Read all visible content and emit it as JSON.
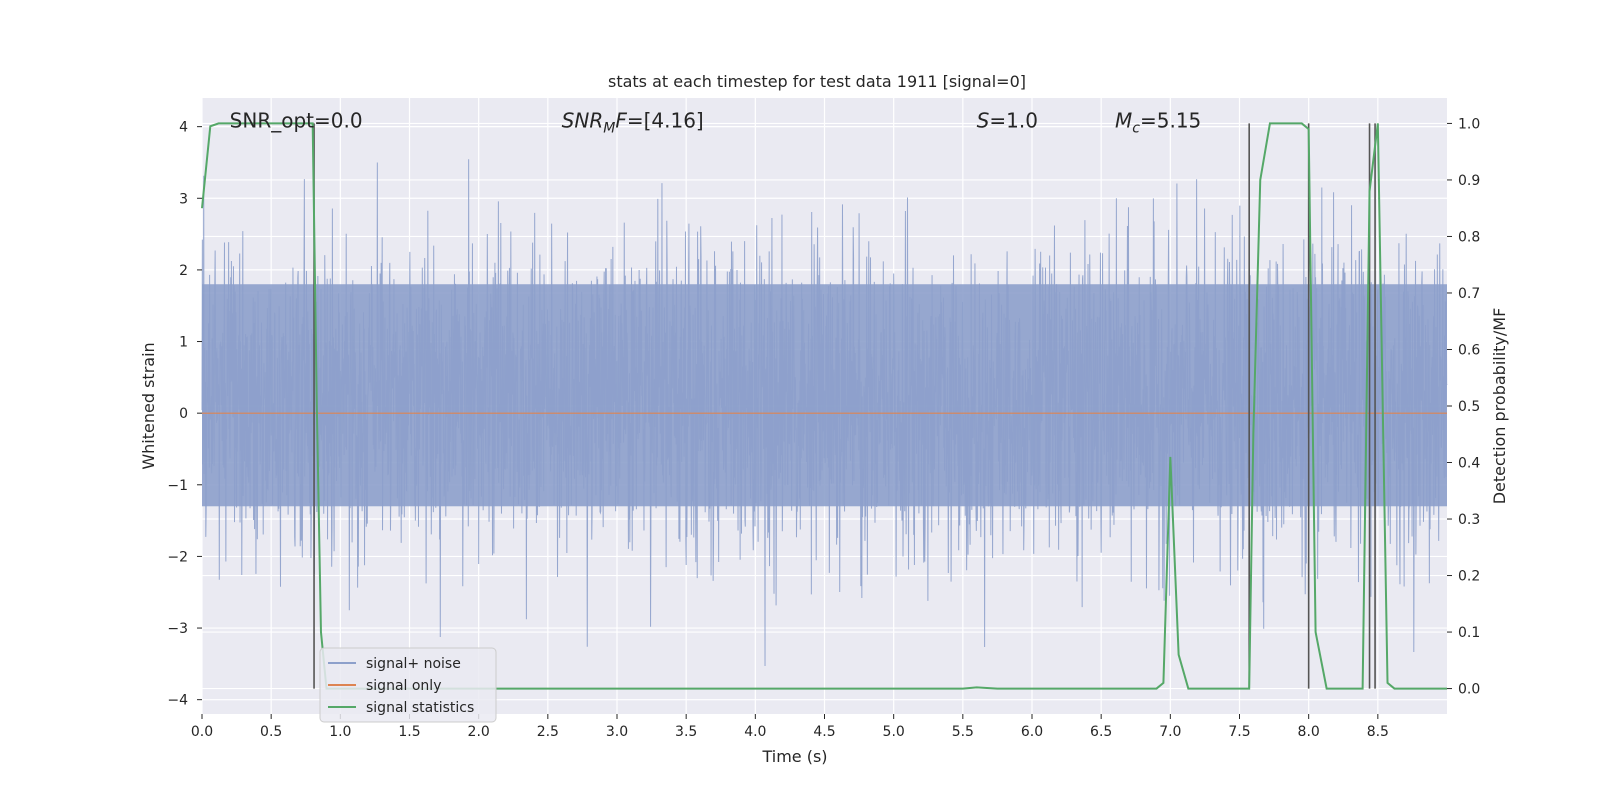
{
  "chart_data": {
    "type": "line",
    "title": "stats at each timestep for test data 1911 [signal=0]",
    "xlabel": "Time (s)",
    "ylabel_left": "Whitened strain",
    "ylabel_right": "Detection probability/MF",
    "xlim": [
      0.0,
      9.0
    ],
    "ylim_left": [
      -4.2,
      4.4
    ],
    "ylim_right": [
      -0.045,
      1.045
    ],
    "x_ticks": [
      0.0,
      0.5,
      1.0,
      1.5,
      2.0,
      2.5,
      3.0,
      3.5,
      4.0,
      4.5,
      5.0,
      5.5,
      6.0,
      6.5,
      7.0,
      7.5,
      8.0,
      8.5
    ],
    "x_tick_labels": [
      "0.0",
      "0.5",
      "1.0",
      "1.5",
      "2.0",
      "2.5",
      "3.0",
      "3.5",
      "4.0",
      "4.5",
      "5.0",
      "5.5",
      "6.0",
      "6.5",
      "7.0",
      "7.5",
      "8.0",
      "8.5"
    ],
    "y_ticks_left": [
      -4,
      -3,
      -2,
      -1,
      0,
      1,
      2,
      3,
      4
    ],
    "y_tick_labels_left": [
      "−4",
      "−3",
      "−2",
      "−1",
      "0",
      "1",
      "2",
      "3",
      "4"
    ],
    "y_ticks_right": [
      0.0,
      0.1,
      0.2,
      0.3,
      0.4,
      0.5,
      0.6,
      0.7,
      0.8,
      0.9,
      1.0
    ],
    "y_tick_labels_right": [
      "0.0",
      "0.1",
      "0.2",
      "0.3",
      "0.4",
      "0.5",
      "0.6",
      "0.7",
      "0.8",
      "0.9",
      "1.0"
    ],
    "grid": true,
    "background": "#eaeaf2",
    "annotations": [
      {
        "base": "SNR_opt=0.0",
        "sub": "",
        "rest": "",
        "italic": false,
        "x": 0.2
      },
      {
        "base": "SNR",
        "sub": "M",
        "rest": "F=[4.16]",
        "italic": true,
        "x": 2.6
      },
      {
        "base": "S",
        "sub": "",
        "rest": "=1.0",
        "italic": true,
        "x": 5.6
      },
      {
        "base": "M",
        "sub": "c",
        "rest": "=5.15",
        "italic": true,
        "x": 6.6
      }
    ],
    "series": [
      {
        "name": "signal+ noise",
        "color": "#8da0cb",
        "axis": "left",
        "style": "dense-noise",
        "approx_range": [
          -3.6,
          3.8
        ],
        "core_band": [
          -1.3,
          1.8
        ]
      },
      {
        "name": "signal only",
        "color": "#dd8452",
        "axis": "left",
        "x": [
          0.0,
          9.0
        ],
        "y": [
          0.0,
          0.0
        ]
      },
      {
        "name": "signal statistics",
        "color": "#55a868",
        "axis": "right",
        "x": [
          0.0,
          0.06,
          0.12,
          0.5,
          0.75,
          0.8,
          0.83,
          0.86,
          0.9,
          1.0,
          2.0,
          3.0,
          4.0,
          5.0,
          5.5,
          5.6,
          5.75,
          6.0,
          6.9,
          6.95,
          7.0,
          7.06,
          7.13,
          7.5,
          7.57,
          7.6,
          7.65,
          7.72,
          7.95,
          8.0,
          8.05,
          8.13,
          8.2,
          8.3,
          8.39,
          8.44,
          8.5,
          8.57,
          8.62,
          9.0
        ],
        "y": [
          0.85,
          0.995,
          1.0,
          1.0,
          1.0,
          1.0,
          0.5,
          0.1,
          0.0,
          0.0,
          0.0,
          0.0,
          0.0,
          0.0,
          0.0,
          0.002,
          0.0,
          0.0,
          0.0,
          0.01,
          0.41,
          0.06,
          0.0,
          0.0,
          0.0,
          0.45,
          0.9,
          1.0,
          1.0,
          0.99,
          0.1,
          0.0,
          0.0,
          0.0,
          0.0,
          0.88,
          1.0,
          0.01,
          0.0,
          0.0
        ]
      }
    ],
    "vlines": {
      "color": "#555555",
      "x": [
        0.81,
        7.57,
        8.0,
        8.44,
        8.48
      ]
    },
    "legend": {
      "placement": "lower-left",
      "entries": [
        {
          "label": "signal+ noise",
          "color": "#8da0cb"
        },
        {
          "label": "signal only",
          "color": "#dd8452"
        },
        {
          "label": "signal statistics",
          "color": "#55a868"
        }
      ]
    }
  }
}
